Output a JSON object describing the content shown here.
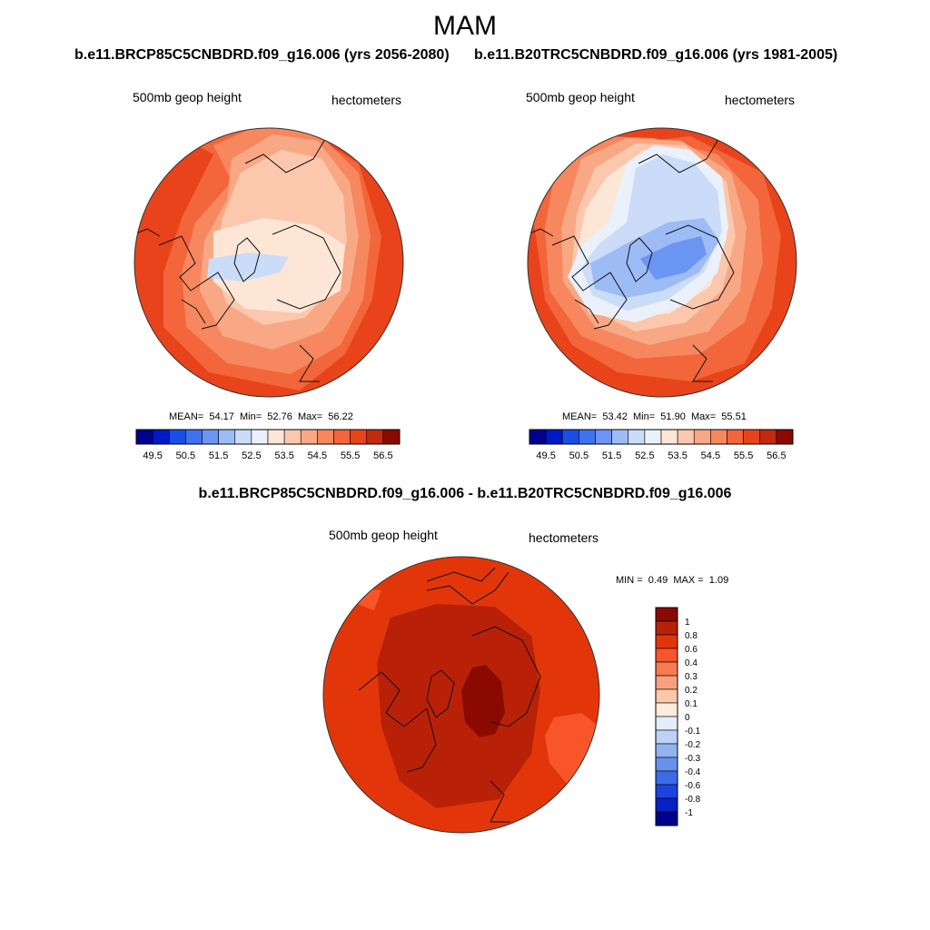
{
  "season": "MAM",
  "panels": [
    {
      "title": "b.e11.BRCP85C5CNBDRD.f09_g16.006 (yrs 2056-2080)",
      "variable": "500mb geop height",
      "units": "hectometers",
      "mean_label": "MEAN=",
      "mean": "54.17",
      "min_label": "Min=",
      "min": "52.76",
      "max_label": "Max=",
      "max": "56.22"
    },
    {
      "title": "b.e11.B20TRC5CNBDRD.f09_g16.006 (yrs 1981-2005)",
      "variable": "500mb geop height",
      "units": "hectometers",
      "mean_label": "MEAN=",
      "mean": "53.42",
      "min_label": "Min=",
      "min": "51.90",
      "max_label": "Max=",
      "max": "55.51"
    }
  ],
  "diff": {
    "title": "b.e11.BRCP85C5CNBDRD.f09_g16.006 - b.e11.B20TRC5CNBDRD.f09_g16.006",
    "variable": "500mb geop height",
    "units": "hectometers",
    "min_label": "MIN =",
    "min": "0.49",
    "max_label": "MAX =",
    "max": "1.09"
  },
  "chart_data": {
    "type": "contour_map",
    "projection": "north polar stereographic",
    "field_colorbar": {
      "labels": [
        "49.5",
        "50.5",
        "51.5",
        "52.5",
        "53.5",
        "54.5",
        "55.5",
        "56.5"
      ],
      "colors": [
        "#00008f",
        "#0019c6",
        "#1b4ee6",
        "#3f72ee",
        "#6b95f2",
        "#9dbcf5",
        "#cadcf7",
        "#eaf1fb",
        "#fde6d6",
        "#fbc8ad",
        "#f8a884",
        "#f6875e",
        "#f3653a",
        "#e8431b",
        "#c12a0f",
        "#8b0a00"
      ]
    },
    "diff_colorbar": {
      "labels": [
        "1",
        "0.8",
        "0.6",
        "0.4",
        "0.3",
        "0.2",
        "0.1",
        "0",
        "-0.1",
        "-0.2",
        "-0.3",
        "-0.4",
        "-0.6",
        "-0.8",
        "-1"
      ],
      "colors": [
        "#8b0a00",
        "#b82108",
        "#e2360a",
        "#f9552b",
        "#f87a51",
        "#f8a07c",
        "#fbc8ac",
        "#fdebdd",
        "#e4eefa",
        "#bcd3f4",
        "#93b4f0",
        "#6891ec",
        "#3c6ae8",
        "#1a43e0",
        "#0521c6",
        "#00008f"
      ]
    }
  }
}
